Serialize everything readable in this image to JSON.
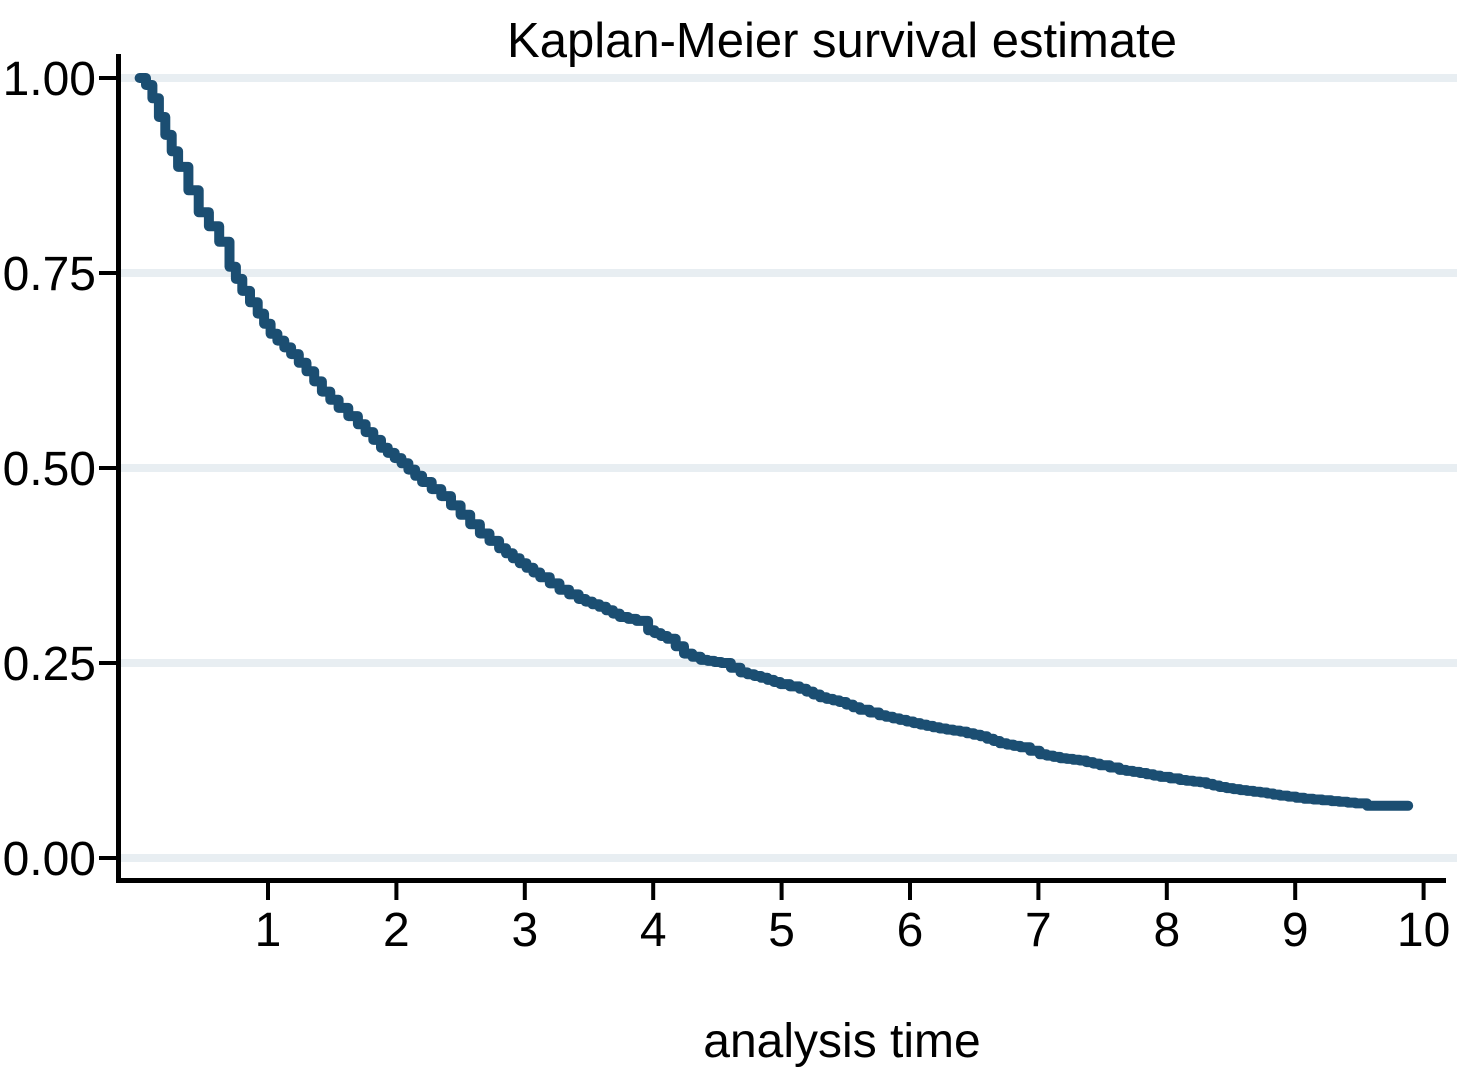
{
  "page": {
    "background": "#ffffff"
  },
  "style": {
    "curve_color": "#1b4e72",
    "grid_color": "#e8eef2",
    "axis_color": "#000000",
    "text_color": "#000000"
  },
  "chart_data": {
    "type": "line",
    "subtype": "kaplan-meier-step",
    "title": "Kaplan-Meier survival estimate",
    "xlabel": "analysis time",
    "ylabel": "",
    "xlim": [
      -0.17,
      10.17
    ],
    "ylim": [
      0,
      1
    ],
    "grid": "horizontal-only",
    "legend": "none",
    "x_ticks": [
      1,
      2,
      3,
      4,
      5,
      6,
      7,
      8,
      9,
      10
    ],
    "y_ticks": [
      "0.00",
      "0.25",
      "0.50",
      "0.75",
      "1.00"
    ],
    "y_tick_values": [
      0,
      0.25,
      0.5,
      0.75,
      1
    ],
    "series": [
      {
        "name": "survival",
        "color": "#1b4e72",
        "points": [
          [
            0.0,
            1.0
          ],
          [
            0.05,
            0.991
          ],
          [
            0.1,
            0.974
          ],
          [
            0.15,
            0.95
          ],
          [
            0.2,
            0.927
          ],
          [
            0.25,
            0.906
          ],
          [
            0.3,
            0.886
          ],
          [
            0.38,
            0.856
          ],
          [
            0.46,
            0.828
          ],
          [
            0.54,
            0.81
          ],
          [
            0.62,
            0.79
          ],
          [
            0.7,
            0.758
          ],
          [
            0.8,
            0.727
          ],
          [
            0.92,
            0.698
          ],
          [
            1.02,
            0.672
          ],
          [
            1.18,
            0.646
          ],
          [
            1.3,
            0.624
          ],
          [
            1.42,
            0.598
          ],
          [
            1.55,
            0.577
          ],
          [
            1.7,
            0.556
          ],
          [
            1.88,
            0.526
          ],
          [
            2.04,
            0.506
          ],
          [
            2.2,
            0.482
          ],
          [
            2.35,
            0.464
          ],
          [
            2.5,
            0.44
          ],
          [
            2.65,
            0.416
          ],
          [
            2.8,
            0.397
          ],
          [
            2.96,
            0.378
          ],
          [
            3.12,
            0.36
          ],
          [
            3.27,
            0.344
          ],
          [
            3.42,
            0.332
          ],
          [
            3.58,
            0.322
          ],
          [
            3.74,
            0.309
          ],
          [
            3.87,
            0.304
          ],
          [
            3.96,
            0.292
          ],
          [
            4.11,
            0.281
          ],
          [
            4.24,
            0.262
          ],
          [
            4.37,
            0.254
          ],
          [
            4.53,
            0.25
          ],
          [
            4.68,
            0.238
          ],
          [
            4.84,
            0.231
          ],
          [
            4.99,
            0.223
          ],
          [
            5.14,
            0.217
          ],
          [
            5.3,
            0.206
          ],
          [
            5.45,
            0.2
          ],
          [
            5.61,
            0.19
          ],
          [
            5.76,
            0.183
          ],
          [
            5.92,
            0.177
          ],
          [
            6.08,
            0.171
          ],
          [
            6.23,
            0.166
          ],
          [
            6.39,
            0.162
          ],
          [
            6.55,
            0.156
          ],
          [
            6.7,
            0.147
          ],
          [
            6.86,
            0.142
          ],
          [
            7.01,
            0.133
          ],
          [
            7.17,
            0.128
          ],
          [
            7.32,
            0.125
          ],
          [
            7.48,
            0.119
          ],
          [
            7.63,
            0.113
          ],
          [
            7.79,
            0.109
          ],
          [
            7.95,
            0.104
          ],
          [
            8.1,
            0.1
          ],
          [
            8.26,
            0.097
          ],
          [
            8.41,
            0.091
          ],
          [
            8.57,
            0.087
          ],
          [
            8.73,
            0.084
          ],
          [
            8.88,
            0.08
          ],
          [
            9.07,
            0.076
          ],
          [
            9.28,
            0.073
          ],
          [
            9.47,
            0.07
          ],
          [
            9.56,
            0.067
          ],
          [
            9.88,
            0.067
          ]
        ]
      }
    ]
  }
}
